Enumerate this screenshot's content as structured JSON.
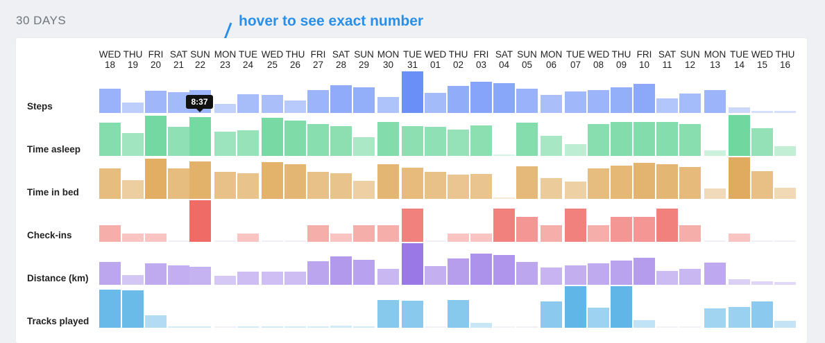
{
  "section_title": "30 DAYS",
  "annotation": "hover to see exact number",
  "tooltip": "8:37",
  "hover": {
    "row": 0,
    "day": 4
  },
  "days": [
    {
      "dow": "WED",
      "date": "18"
    },
    {
      "dow": "THU",
      "date": "19"
    },
    {
      "dow": "FRI",
      "date": "20"
    },
    {
      "dow": "SAT",
      "date": "21"
    },
    {
      "dow": "SUN",
      "date": "22"
    },
    {
      "dow": "MON",
      "date": "23"
    },
    {
      "dow": "TUE",
      "date": "24"
    },
    {
      "dow": "WED",
      "date": "25"
    },
    {
      "dow": "THU",
      "date": "26"
    },
    {
      "dow": "FRI",
      "date": "27"
    },
    {
      "dow": "SAT",
      "date": "28"
    },
    {
      "dow": "SUN",
      "date": "29"
    },
    {
      "dow": "MON",
      "date": "30"
    },
    {
      "dow": "TUE",
      "date": "31"
    },
    {
      "dow": "WED",
      "date": "01"
    },
    {
      "dow": "THU",
      "date": "02"
    },
    {
      "dow": "FRI",
      "date": "03"
    },
    {
      "dow": "SAT",
      "date": "04"
    },
    {
      "dow": "SUN",
      "date": "05"
    },
    {
      "dow": "MON",
      "date": "06"
    },
    {
      "dow": "TUE",
      "date": "07"
    },
    {
      "dow": "WED",
      "date": "08"
    },
    {
      "dow": "THU",
      "date": "09"
    },
    {
      "dow": "FRI",
      "date": "10"
    },
    {
      "dow": "SAT",
      "date": "11"
    },
    {
      "dow": "SUN",
      "date": "12"
    },
    {
      "dow": "MON",
      "date": "13"
    },
    {
      "dow": "TUE",
      "date": "14"
    },
    {
      "dow": "WED",
      "date": "15"
    },
    {
      "dow": "THU",
      "date": "16"
    }
  ],
  "chart_data": {
    "type": "bar",
    "categories": [
      "WED 18",
      "THU 19",
      "FRI 20",
      "SAT 21",
      "SUN 22",
      "MON 23",
      "TUE 24",
      "WED 25",
      "THU 26",
      "FRI 27",
      "SAT 28",
      "SUN 29",
      "MON 30",
      "TUE 31",
      "WED 01",
      "THU 02",
      "FRI 03",
      "SAT 04",
      "SUN 05",
      "MON 06",
      "TUE 07",
      "WED 08",
      "THU 09",
      "FRI 10",
      "SAT 11",
      "SUN 12",
      "MON 13",
      "TUE 14",
      "WED 15",
      "THU 16"
    ],
    "series": [
      {
        "name": "Steps",
        "color": "#6a8ff7",
        "values": [
          0.58,
          0.25,
          0.53,
          0.5,
          0.55,
          0.22,
          0.45,
          0.43,
          0.3,
          0.55,
          0.67,
          0.62,
          0.38,
          1.0,
          0.48,
          0.65,
          0.75,
          0.72,
          0.58,
          0.43,
          0.52,
          0.55,
          0.62,
          0.7,
          0.35,
          0.47,
          0.55,
          0.13,
          0.05,
          0.05
        ]
      },
      {
        "name": "Time asleep",
        "color": "#6fd79e",
        "values": [
          0.8,
          0.55,
          0.96,
          0.7,
          0.94,
          0.58,
          0.62,
          0.92,
          0.85,
          0.76,
          0.72,
          0.45,
          0.82,
          0.72,
          0.7,
          0.64,
          0.74,
          0.03,
          0.8,
          0.48,
          0.28,
          0.77,
          0.82,
          0.82,
          0.81,
          0.76,
          0.14,
          0.99,
          0.66,
          0.24
        ]
      },
      {
        "name": "Time in bed",
        "color": "#e0ab5e",
        "values": [
          0.73,
          0.45,
          0.96,
          0.73,
          0.9,
          0.65,
          0.62,
          0.88,
          0.83,
          0.65,
          0.62,
          0.43,
          0.83,
          0.75,
          0.65,
          0.58,
          0.6,
          0.02,
          0.78,
          0.5,
          0.42,
          0.73,
          0.8,
          0.86,
          0.83,
          0.76,
          0.25,
          1.0,
          0.67,
          0.27
        ]
      },
      {
        "name": "Check-ins",
        "color": "#ef6b66",
        "values": [
          0.4,
          0.2,
          0.2,
          0.0,
          1.0,
          0.0,
          0.2,
          0.0,
          0.0,
          0.4,
          0.2,
          0.4,
          0.4,
          0.8,
          0.0,
          0.2,
          0.2,
          0.8,
          0.6,
          0.4,
          0.8,
          0.4,
          0.6,
          0.6,
          0.8,
          0.4,
          0.0,
          0.2,
          0.0,
          0.0
        ]
      },
      {
        "name": "Distance (km)",
        "color": "#9a79e6",
        "values": [
          0.55,
          0.23,
          0.51,
          0.47,
          0.43,
          0.21,
          0.32,
          0.31,
          0.32,
          0.56,
          0.68,
          0.6,
          0.38,
          1.0,
          0.45,
          0.63,
          0.75,
          0.72,
          0.55,
          0.41,
          0.46,
          0.51,
          0.58,
          0.65,
          0.34,
          0.38,
          0.53,
          0.14,
          0.08,
          0.06
        ]
      },
      {
        "name": "Tracks played",
        "color": "#5fb6e7",
        "values": [
          0.92,
          0.9,
          0.3,
          0.03,
          0.03,
          0.0,
          0.03,
          0.03,
          0.03,
          0.03,
          0.05,
          0.03,
          0.67,
          0.65,
          0.0,
          0.67,
          0.12,
          0.0,
          0.0,
          0.63,
          1.0,
          0.48,
          1.0,
          0.18,
          0.0,
          0.0,
          0.46,
          0.5,
          0.63,
          0.16
        ]
      }
    ]
  }
}
